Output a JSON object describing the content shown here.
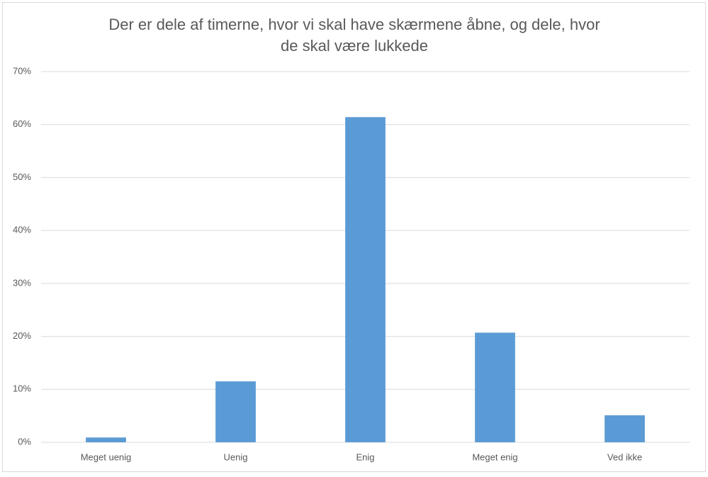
{
  "chart_data": {
    "type": "bar",
    "title": "Der er dele af timerne, hvor vi skal have skærmene åbne, og dele, hvor de skal være lukkede",
    "categories": [
      "Meget uenig",
      "Uenig",
      "Enig",
      "Meget enig",
      "Ved ikke"
    ],
    "values": [
      0.9,
      11.5,
      61.4,
      20.7,
      5.1
    ],
    "color": "#5b9bd5",
    "ylim": [
      0,
      70
    ],
    "yticks": [
      {
        "value": 0,
        "label": "0%"
      },
      {
        "value": 10,
        "label": "10%"
      },
      {
        "value": 20,
        "label": "20%"
      },
      {
        "value": 30,
        "label": "30%"
      },
      {
        "value": 40,
        "label": "40%"
      },
      {
        "value": 50,
        "label": "50%"
      },
      {
        "value": 60,
        "label": "60%"
      },
      {
        "value": 70,
        "label": "70%"
      }
    ],
    "grid": true
  }
}
